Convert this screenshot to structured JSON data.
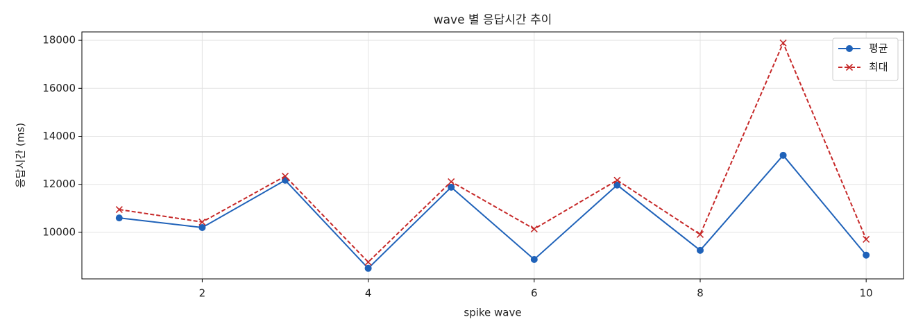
{
  "chart_data": {
    "type": "line",
    "title": "wave 별 응답시간 추이",
    "x_label": "spike wave",
    "y_label": "응답시간 (ms)",
    "x": [
      1,
      2,
      3,
      4,
      5,
      6,
      7,
      8,
      9,
      10
    ],
    "series": [
      {
        "name": "평균",
        "color": "#1f62b9",
        "marker": "o",
        "linestyle": "solid",
        "values": [
          10600,
          10200,
          12170,
          8500,
          11880,
          8870,
          11970,
          9250,
          13210,
          9050
        ]
      },
      {
        "name": "최대",
        "color": "#c62828",
        "marker": "x",
        "linestyle": "dashed",
        "values": [
          10950,
          10430,
          12340,
          8760,
          12110,
          10140,
          12170,
          9910,
          17890,
          9710
        ]
      }
    ],
    "xlim": [
      0.55,
      10.45
    ],
    "xticks": [
      2,
      4,
      6,
      8,
      10
    ],
    "ylim": [
      8060,
      18350
    ],
    "yticks": [
      10000,
      12000,
      14000,
      16000,
      18000
    ],
    "grid": true,
    "legend": "upper right"
  }
}
